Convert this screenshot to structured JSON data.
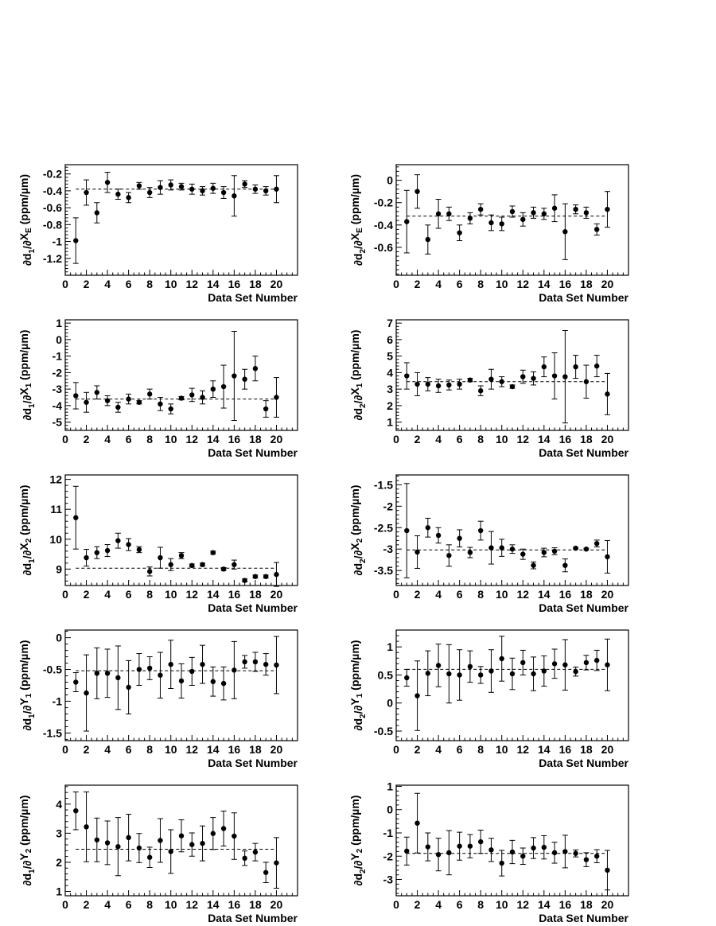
{
  "figure": {
    "xlabel": "Data Set Number",
    "xticks": [
      "0",
      "2",
      "4",
      "6",
      "8",
      "10",
      "12",
      "14",
      "16",
      "18",
      "20"
    ]
  },
  "chart_data": [
    {
      "type": "scatter",
      "ylabel": {
        "num": "d",
        "num_sub": "1",
        "den": "X",
        "den_sub": "E",
        "unit": "(ppm/µm)"
      },
      "xlim": [
        0,
        22
      ],
      "ylim": [
        -1.4,
        -0.09
      ],
      "yticks": [
        -1.2,
        -1,
        -0.8,
        -0.6,
        -0.4,
        -0.2
      ],
      "ytick_labels": [
        "-1.2",
        "-1",
        "-0.8",
        "-0.6",
        "-0.4",
        "-0.2"
      ],
      "mean": -0.38,
      "x": [
        1,
        2,
        3,
        4,
        5,
        6,
        7,
        8,
        9,
        10,
        11,
        12,
        13,
        14,
        15,
        16,
        17,
        18,
        19,
        20
      ],
      "y": [
        -0.99,
        -0.42,
        -0.66,
        -0.3,
        -0.44,
        -0.48,
        -0.34,
        -0.42,
        -0.36,
        -0.33,
        -0.35,
        -0.38,
        -0.4,
        -0.37,
        -0.42,
        -0.46,
        -0.32,
        -0.38,
        -0.4,
        -0.38
      ],
      "err": [
        0.27,
        0.15,
        0.12,
        0.12,
        0.06,
        0.06,
        0.04,
        0.06,
        0.08,
        0.06,
        0.04,
        0.06,
        0.05,
        0.06,
        0.07,
        0.24,
        0.04,
        0.05,
        0.05,
        0.16
      ]
    },
    {
      "type": "scatter",
      "ylabel": {
        "num": "d",
        "num_sub": "2",
        "den": "X",
        "den_sub": "E",
        "unit": "(ppm/µm)"
      },
      "xlim": [
        0,
        22
      ],
      "ylim": [
        -0.85,
        0.14
      ],
      "yticks": [
        -0.6,
        -0.4,
        -0.2,
        0
      ],
      "ytick_labels": [
        "-0.6",
        "-0.4",
        "-0.2",
        "0"
      ],
      "mean": -0.32,
      "x": [
        1,
        2,
        3,
        4,
        5,
        6,
        7,
        8,
        9,
        10,
        11,
        12,
        13,
        14,
        15,
        16,
        17,
        18,
        19,
        20
      ],
      "y": [
        -0.37,
        -0.1,
        -0.53,
        -0.3,
        -0.3,
        -0.47,
        -0.34,
        -0.26,
        -0.38,
        -0.39,
        -0.28,
        -0.35,
        -0.29,
        -0.3,
        -0.25,
        -0.46,
        -0.26,
        -0.29,
        -0.44,
        -0.26
      ],
      "err": [
        0.28,
        0.15,
        0.13,
        0.13,
        0.06,
        0.07,
        0.05,
        0.05,
        0.07,
        0.06,
        0.05,
        0.06,
        0.05,
        0.05,
        0.12,
        0.25,
        0.04,
        0.05,
        0.05,
        0.16
      ]
    },
    {
      "type": "scatter",
      "ylabel": {
        "num": "d",
        "num_sub": "1",
        "den": "X",
        "den_sub": "1",
        "unit": "(ppm/µm)"
      },
      "xlim": [
        0,
        22
      ],
      "ylim": [
        -5.5,
        1.2
      ],
      "yticks": [
        -5,
        -4,
        -3,
        -2,
        -1,
        0,
        1
      ],
      "ytick_labels": [
        "-5",
        "-4",
        "-3",
        "-2",
        "-1",
        "0",
        "1"
      ],
      "mean": -3.6,
      "x": [
        1,
        2,
        3,
        4,
        5,
        6,
        7,
        8,
        9,
        10,
        11,
        12,
        13,
        14,
        15,
        16,
        17,
        18,
        19,
        20
      ],
      "y": [
        -3.4,
        -3.8,
        -3.2,
        -3.7,
        -4.1,
        -3.6,
        -3.8,
        -3.3,
        -3.9,
        -4.2,
        -3.55,
        -3.35,
        -3.5,
        -3.0,
        -2.85,
        -2.2,
        -2.4,
        -1.75,
        -4.2,
        -3.5
      ],
      "err": [
        0.8,
        0.6,
        0.4,
        0.3,
        0.3,
        0.3,
        0.1,
        0.3,
        0.4,
        0.3,
        0.1,
        0.4,
        0.4,
        0.5,
        1.3,
        2.7,
        0.6,
        0.75,
        0.5,
        1.2
      ]
    },
    {
      "type": "scatter",
      "ylabel": {
        "num": "d",
        "num_sub": "2",
        "den": "X",
        "den_sub": "1",
        "unit": "(ppm/µm)"
      },
      "xlim": [
        0,
        22
      ],
      "ylim": [
        0.5,
        7.2
      ],
      "yticks": [
        1,
        2,
        3,
        4,
        5,
        6,
        7
      ],
      "ytick_labels": [
        "1",
        "2",
        "3",
        "4",
        "5",
        "6",
        "7"
      ],
      "mean": 3.45,
      "x": [
        1,
        2,
        3,
        4,
        5,
        6,
        7,
        8,
        9,
        10,
        11,
        12,
        13,
        14,
        15,
        16,
        17,
        18,
        19,
        20
      ],
      "y": [
        3.8,
        3.3,
        3.3,
        3.2,
        3.25,
        3.3,
        3.55,
        2.9,
        3.6,
        3.45,
        3.15,
        3.75,
        3.65,
        4.35,
        3.8,
        3.75,
        4.35,
        3.45,
        4.4,
        2.7
      ],
      "err": [
        0.8,
        0.7,
        0.4,
        0.4,
        0.3,
        0.3,
        0.1,
        0.3,
        0.6,
        0.3,
        0.1,
        0.4,
        0.4,
        0.6,
        1.4,
        2.8,
        0.7,
        1.0,
        0.65,
        1.25
      ]
    },
    {
      "type": "scatter",
      "ylabel": {
        "num": "d",
        "num_sub": "1",
        "den": "X",
        "den_sub": "2",
        "unit": "(ppm/µm)"
      },
      "xlim": [
        0,
        22
      ],
      "ylim": [
        8.45,
        12.15
      ],
      "yticks": [
        9,
        10,
        11,
        12
      ],
      "ytick_labels": [
        "9",
        "10",
        "11",
        "12"
      ],
      "mean": 9.03,
      "x": [
        1,
        2,
        3,
        4,
        5,
        6,
        7,
        8,
        9,
        10,
        11,
        12,
        13,
        14,
        15,
        16,
        17,
        18,
        19,
        20
      ],
      "y": [
        10.72,
        9.38,
        9.55,
        9.62,
        9.95,
        9.82,
        9.65,
        8.92,
        9.38,
        9.15,
        9.45,
        9.12,
        9.15,
        9.55,
        9.0,
        9.15,
        8.62,
        8.75,
        8.75,
        8.82
      ],
      "err": [
        1.05,
        0.28,
        0.2,
        0.2,
        0.25,
        0.2,
        0.1,
        0.15,
        0.35,
        0.2,
        0.1,
        0.05,
        0.05,
        0.05,
        0.05,
        0.15,
        0.05,
        0.05,
        0.05,
        0.4
      ]
    },
    {
      "type": "scatter",
      "ylabel": {
        "num": "d",
        "num_sub": "2",
        "den": "X",
        "den_sub": "2",
        "unit": "(ppm/µm)"
      },
      "xlim": [
        0,
        22
      ],
      "ylim": [
        -3.85,
        -1.27
      ],
      "yticks": [
        -3.5,
        -3,
        -2.5,
        -2,
        -1.5
      ],
      "ytick_labels": [
        "-3.5",
        "-3",
        "-2.5",
        "-2",
        "-1.5"
      ],
      "mean": -3.02,
      "x": [
        1,
        2,
        3,
        4,
        5,
        6,
        7,
        8,
        9,
        10,
        11,
        12,
        13,
        14,
        15,
        16,
        17,
        18,
        19,
        20
      ],
      "y": [
        -2.57,
        -3.07,
        -2.5,
        -2.68,
        -3.15,
        -2.75,
        -3.08,
        -2.57,
        -2.97,
        -2.97,
        -3.0,
        -3.12,
        -3.38,
        -3.08,
        -3.05,
        -3.38,
        -2.98,
        -3.0,
        -2.87,
        -3.18
      ],
      "err": [
        1.1,
        0.38,
        0.22,
        0.18,
        0.25,
        0.2,
        0.12,
        0.22,
        0.38,
        0.2,
        0.1,
        0.12,
        0.08,
        0.1,
        0.08,
        0.15,
        0.02,
        0.02,
        0.08,
        0.38
      ]
    },
    {
      "type": "scatter",
      "ylabel": {
        "num": "d",
        "num_sub": "1",
        "den": "Y",
        "den_sub": "1",
        "unit": "(ppm/µm)"
      },
      "xlim": [
        0,
        22
      ],
      "ylim": [
        -1.62,
        0.12
      ],
      "yticks": [
        -1.5,
        -1,
        -0.5,
        0
      ],
      "ytick_labels": [
        "-1.5",
        "-1",
        "-0.5",
        "0"
      ],
      "mean": -0.52,
      "x": [
        1,
        2,
        3,
        4,
        5,
        6,
        7,
        8,
        9,
        10,
        11,
        12,
        13,
        14,
        15,
        16,
        17,
        18,
        19,
        20
      ],
      "y": [
        -0.7,
        -0.87,
        -0.56,
        -0.56,
        -0.63,
        -0.78,
        -0.5,
        -0.48,
        -0.59,
        -0.42,
        -0.68,
        -0.53,
        -0.42,
        -0.69,
        -0.72,
        -0.51,
        -0.38,
        -0.38,
        -0.42,
        -0.43
      ],
      "err": [
        0.15,
        0.6,
        0.4,
        0.38,
        0.5,
        0.42,
        0.25,
        0.18,
        0.36,
        0.38,
        0.27,
        0.22,
        0.3,
        0.23,
        0.26,
        0.45,
        0.1,
        0.15,
        0.17,
        0.45
      ]
    },
    {
      "type": "scatter",
      "ylabel": {
        "num": "d",
        "num_sub": "2",
        "den": "Y",
        "den_sub": "1",
        "unit": "(ppm/µm)"
      },
      "xlim": [
        0,
        22
      ],
      "ylim": [
        -0.67,
        1.3
      ],
      "yticks": [
        -0.5,
        0,
        0.5,
        1
      ],
      "ytick_labels": [
        "-0.5",
        "0",
        "0.5",
        "1"
      ],
      "mean": 0.6,
      "x": [
        1,
        2,
        3,
        4,
        5,
        6,
        7,
        8,
        9,
        10,
        11,
        12,
        13,
        14,
        15,
        16,
        17,
        18,
        19,
        20
      ],
      "y": [
        0.45,
        0.13,
        0.53,
        0.67,
        0.52,
        0.5,
        0.65,
        0.5,
        0.57,
        0.79,
        0.52,
        0.72,
        0.52,
        0.57,
        0.7,
        0.68,
        0.56,
        0.72,
        0.76,
        0.68
      ],
      "err": [
        0.15,
        0.62,
        0.4,
        0.38,
        0.52,
        0.45,
        0.28,
        0.15,
        0.38,
        0.4,
        0.28,
        0.22,
        0.3,
        0.27,
        0.26,
        0.45,
        0.08,
        0.13,
        0.18,
        0.46
      ]
    },
    {
      "type": "scatter",
      "ylabel": {
        "num": "d",
        "num_sub": "1",
        "den": "Y",
        "den_sub": "2",
        "unit": "(ppm/µm)"
      },
      "xlim": [
        0,
        22
      ],
      "ylim": [
        0.85,
        4.65
      ],
      "yticks": [
        1,
        2,
        3,
        4
      ],
      "ytick_labels": [
        "1",
        "2",
        "3",
        "4"
      ],
      "mean": 2.45,
      "x": [
        1,
        2,
        3,
        4,
        5,
        6,
        7,
        8,
        9,
        10,
        11,
        12,
        13,
        14,
        15,
        16,
        17,
        18,
        19,
        20
      ],
      "y": [
        3.77,
        3.22,
        2.77,
        2.67,
        2.54,
        2.85,
        2.49,
        2.17,
        2.75,
        2.37,
        2.91,
        2.61,
        2.65,
        2.99,
        3.16,
        2.9,
        2.14,
        2.35,
        1.65,
        1.98
      ],
      "err": [
        0.65,
        1.2,
        0.75,
        0.75,
        1.0,
        0.8,
        0.5,
        0.35,
        0.75,
        0.75,
        0.55,
        0.4,
        0.6,
        0.55,
        0.6,
        0.8,
        0.25,
        0.3,
        0.35,
        0.87
      ]
    },
    {
      "type": "scatter",
      "ylabel": {
        "num": "d",
        "num_sub": "2",
        "den": "Y",
        "den_sub": "2",
        "unit": "(ppm/µm)"
      },
      "xlim": [
        0,
        22
      ],
      "ylim": [
        -3.7,
        1.05
      ],
      "yticks": [
        -3,
        -2,
        -1,
        0,
        1
      ],
      "ytick_labels": [
        "-3",
        "-2",
        "-1",
        "0",
        "1"
      ],
      "mean": -1.88,
      "x": [
        1,
        2,
        3,
        4,
        5,
        6,
        7,
        8,
        9,
        10,
        11,
        12,
        13,
        14,
        15,
        16,
        17,
        18,
        19,
        20
      ],
      "y": [
        -1.78,
        -0.58,
        -1.6,
        -1.93,
        -1.85,
        -1.57,
        -1.57,
        -1.38,
        -1.73,
        -2.3,
        -1.82,
        -2.0,
        -1.65,
        -1.62,
        -1.85,
        -1.8,
        -1.88,
        -2.15,
        -2.0,
        -2.6
      ],
      "err": [
        0.6,
        1.28,
        0.6,
        0.7,
        0.95,
        0.6,
        0.5,
        0.5,
        0.5,
        0.55,
        0.5,
        0.35,
        0.45,
        0.5,
        0.45,
        0.7,
        0.15,
        0.3,
        0.28,
        0.85
      ]
    }
  ]
}
